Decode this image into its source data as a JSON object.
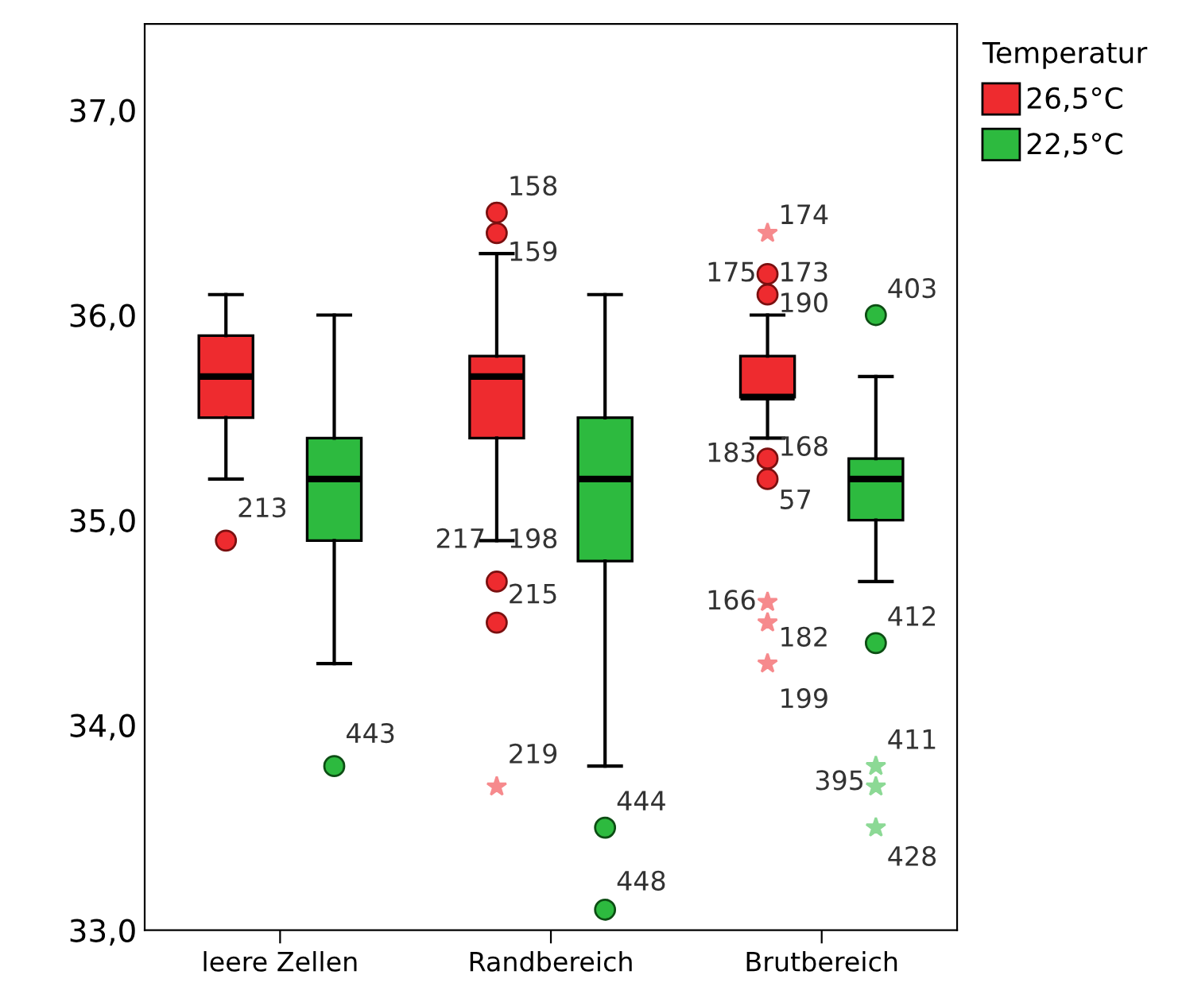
{
  "chart_data": {
    "type": "box",
    "categories": [
      "leere Zellen",
      "Randbereich",
      "Brutbereich"
    ],
    "legend_title": "Temperatur",
    "legend": "right",
    "grid": false,
    "ylim": [
      33.0,
      37.42
    ],
    "yticks": [
      {
        "value": 33,
        "label": "33,0"
      },
      {
        "value": 34,
        "label": "34,0"
      },
      {
        "value": 35,
        "label": "35,0"
      },
      {
        "value": 36,
        "label": "36,0"
      },
      {
        "value": 37,
        "label": "37,0"
      }
    ],
    "series": [
      {
        "name": "26,5°C",
        "color": "#ee2b2f",
        "boxes": [
          {
            "low": 35.2,
            "q1": 35.5,
            "median": 35.7,
            "q3": 35.9,
            "high": 36.1,
            "outliers": [
              34.9
            ]
          },
          {
            "low": 34.9,
            "q1": 35.4,
            "median": 35.7,
            "q3": 35.8,
            "high": 36.3,
            "outliers": [
              36.5,
              36.4,
              34.7,
              34.5,
              33.7
            ]
          },
          {
            "low": 35.4,
            "q1": 35.6,
            "median": 35.6,
            "q3": 35.8,
            "high": 36.0,
            "outliers": [
              36.4,
              36.2,
              36.1,
              35.3,
              35.2,
              34.6,
              34.5,
              34.3
            ]
          }
        ]
      },
      {
        "name": "22,5°C",
        "color": "#2dba3f",
        "boxes": [
          {
            "low": 34.3,
            "q1": 34.9,
            "median": 35.2,
            "q3": 35.4,
            "high": 36.0,
            "outliers": [
              33.8
            ]
          },
          {
            "low": 33.8,
            "q1": 34.8,
            "median": 35.2,
            "q3": 35.5,
            "high": 36.1,
            "outliers": [
              33.5,
              33.1
            ]
          },
          {
            "low": 34.7,
            "q1": 35.0,
            "median": 35.2,
            "q3": 35.3,
            "high": 35.7,
            "outliers": [
              36.0,
              34.4,
              33.8,
              33.7,
              33.5
            ]
          }
        ]
      }
    ],
    "annotations": [
      "213",
      "443",
      "158",
      "159",
      "217",
      "198",
      "215",
      "219",
      "444",
      "448",
      "175",
      "174",
      "173",
      "190",
      "183",
      "168",
      "57",
      "166",
      "182",
      "199",
      "403",
      "412",
      "395",
      "411",
      "428"
    ]
  }
}
